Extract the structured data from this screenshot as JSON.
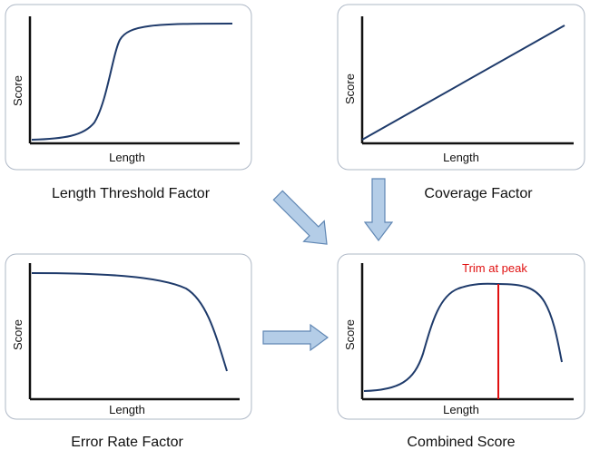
{
  "colors": {
    "curve": "#1f3b6b",
    "axis": "#111111",
    "panel_border": "#aeb8c6",
    "arrow_fill": "#b4cde7",
    "arrow_stroke": "#5f86b3",
    "trim_line": "#e01010"
  },
  "panels": [
    {
      "id": "length-threshold",
      "caption": "Length Threshold Factor",
      "xlabel": "Length",
      "ylabel": "Score",
      "curve": "sigmoid rising"
    },
    {
      "id": "coverage",
      "caption": "Coverage Factor",
      "xlabel": "Length",
      "ylabel": "Score",
      "curve": "linear rising"
    },
    {
      "id": "error-rate",
      "caption": "Error Rate Factor",
      "xlabel": "Length",
      "ylabel": "Score",
      "curve": "flat then falling"
    },
    {
      "id": "combined",
      "caption": "Combined Score",
      "xlabel": "Length",
      "ylabel": "Score",
      "curve": "rise then fall",
      "annotation": "Trim at peak"
    }
  ],
  "arrows": [
    "diagonal-to-combined",
    "down-to-combined",
    "right-to-combined"
  ]
}
